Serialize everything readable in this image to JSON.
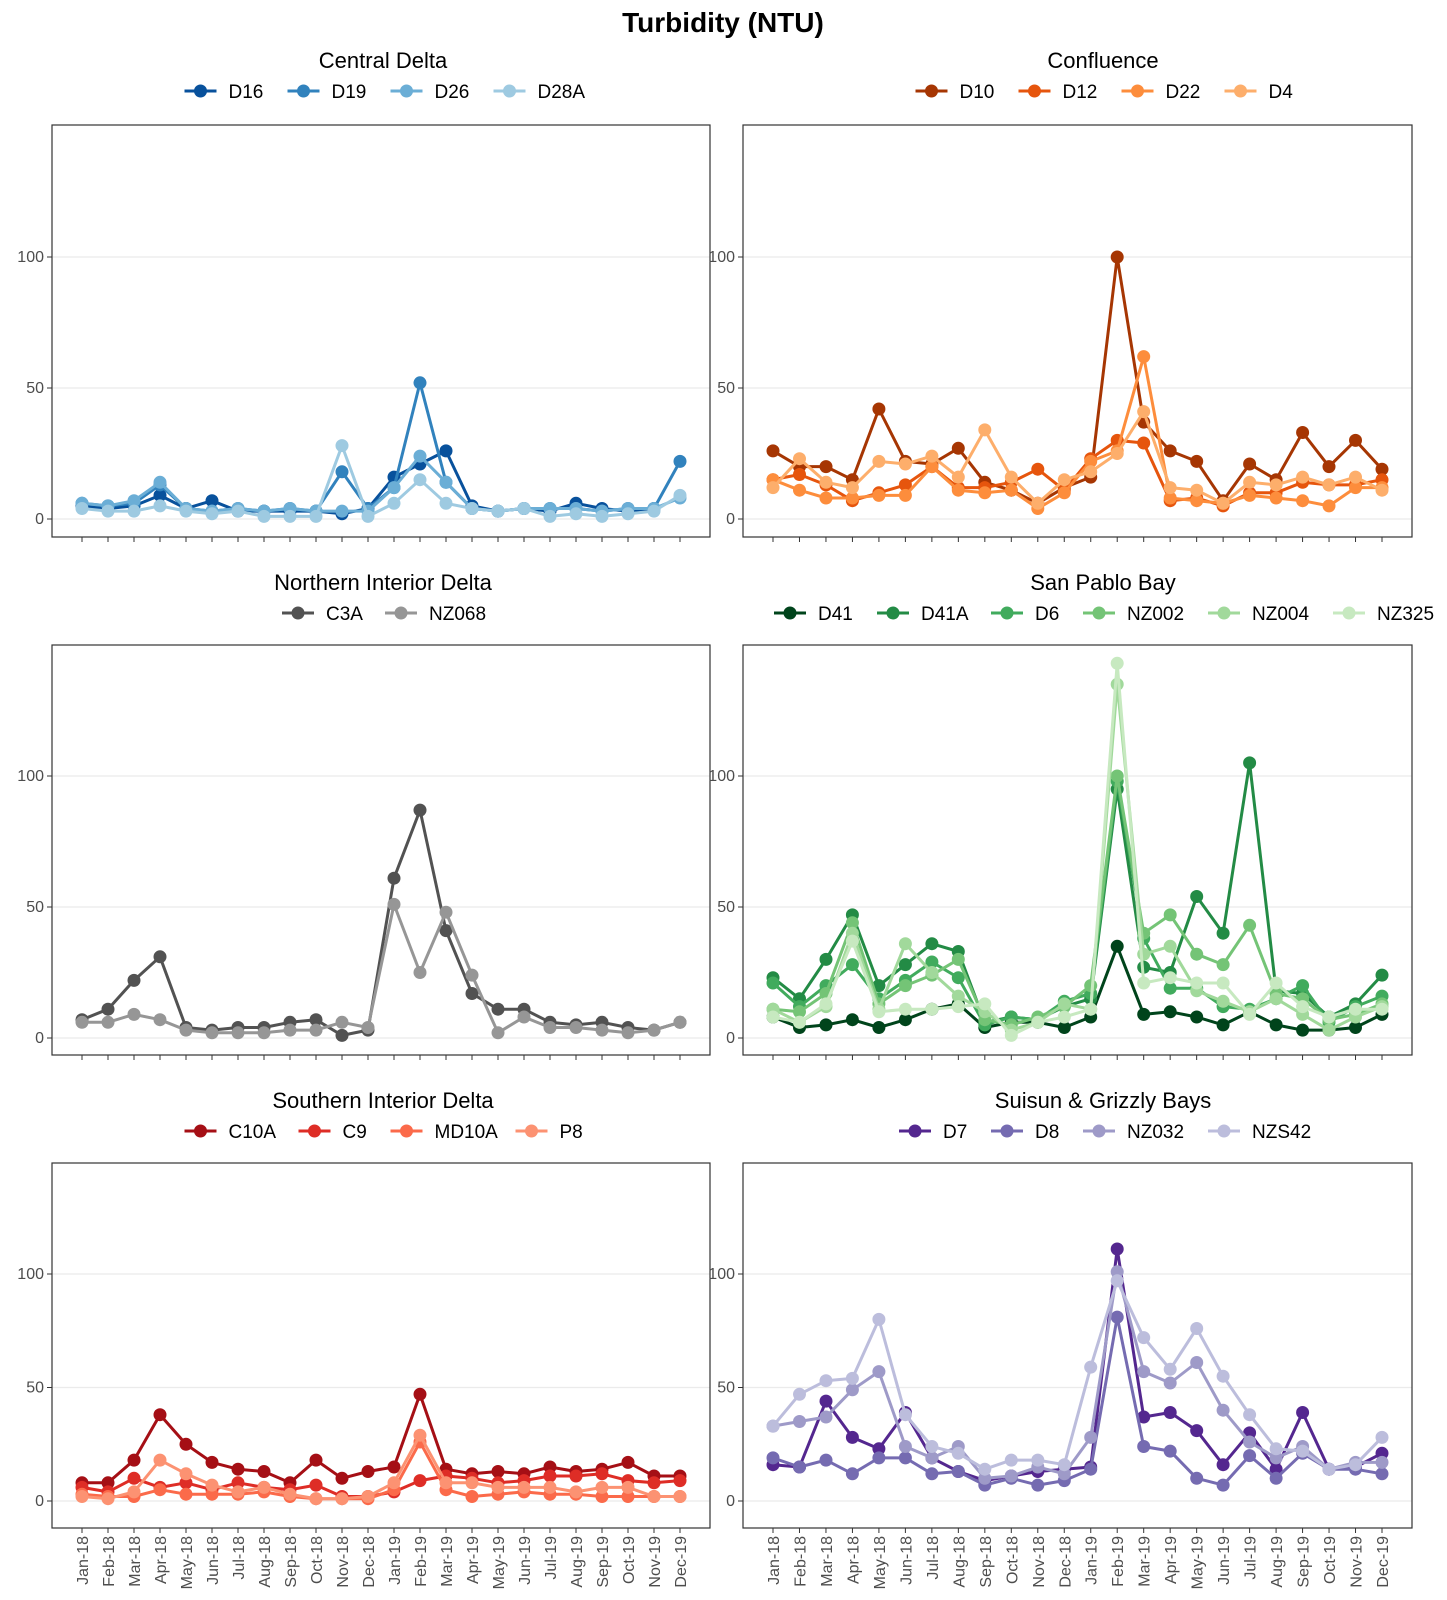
{
  "figure": {
    "title": "Turbidity (NTU)"
  },
  "chart_data": [
    {
      "type": "line",
      "title": "Central Delta",
      "x": [
        "Jan-18",
        "Feb-18",
        "Mar-18",
        "Apr-18",
        "May-18",
        "Jun-18",
        "Jul-18",
        "Aug-18",
        "Sep-18",
        "Oct-18",
        "Nov-18",
        "Dec-18",
        "Jan-19",
        "Feb-19",
        "Mar-19",
        "Apr-19",
        "May-19",
        "Jun-19",
        "Jul-19",
        "Aug-19",
        "Sep-19",
        "Oct-19",
        "Nov-19",
        "Dec-19"
      ],
      "ylim": [
        0,
        140
      ],
      "yticks": [
        0,
        50,
        100
      ],
      "show_x_labels": false,
      "series": [
        {
          "name": "D16",
          "color": "#08519c",
          "values": [
            5,
            4,
            5,
            9,
            4,
            7,
            3,
            3,
            3,
            3,
            2,
            4,
            16,
            21,
            26,
            5,
            3,
            4,
            3,
            6,
            4,
            3,
            4,
            null
          ]
        },
        {
          "name": "D19",
          "color": "#3182bd",
          "values": [
            6,
            5,
            6,
            13,
            4,
            3,
            4,
            3,
            4,
            3,
            18,
            4,
            12,
            52,
            14,
            4,
            3,
            4,
            4,
            4,
            3,
            4,
            4,
            22
          ]
        },
        {
          "name": "D26",
          "color": "#6baed6",
          "values": [
            6,
            5,
            7,
            14,
            4,
            3,
            4,
            3,
            4,
            3,
            3,
            3,
            12,
            24,
            14,
            4,
            3,
            4,
            4,
            4,
            3,
            4,
            4,
            8
          ]
        },
        {
          "name": "D28A",
          "color": "#9ecae1",
          "values": [
            4,
            3,
            3,
            5,
            3,
            2,
            3,
            1,
            1,
            1,
            28,
            1,
            6,
            15,
            6,
            4,
            3,
            4,
            1,
            2,
            1,
            2,
            3,
            9
          ]
        }
      ]
    },
    {
      "type": "line",
      "title": "Confluence",
      "x": [
        "Jan-18",
        "Feb-18",
        "Mar-18",
        "Apr-18",
        "May-18",
        "Jun-18",
        "Jul-18",
        "Aug-18",
        "Sep-18",
        "Oct-18",
        "Nov-18",
        "Dec-18",
        "Jan-19",
        "Feb-19",
        "Mar-19",
        "Apr-19",
        "May-19",
        "Jun-19",
        "Jul-19",
        "Aug-19",
        "Sep-19",
        "Oct-19",
        "Nov-19",
        "Dec-19"
      ],
      "ylim": [
        0,
        140
      ],
      "yticks": [
        0,
        50,
        100
      ],
      "show_x_labels": false,
      "series": [
        {
          "name": "D10",
          "color": "#a63603",
          "values": [
            26,
            20,
            20,
            15,
            42,
            22,
            21,
            27,
            14,
            11,
            6,
            12,
            16,
            100,
            37,
            26,
            22,
            7,
            21,
            15,
            33,
            20,
            30,
            19
          ]
        },
        {
          "name": "D12",
          "color": "#e6550d",
          "values": [
            15,
            17,
            13,
            7,
            10,
            13,
            20,
            12,
            12,
            14,
            19,
            11,
            23,
            30,
            29,
            7,
            8,
            5,
            10,
            10,
            14,
            13,
            13,
            15
          ]
        },
        {
          "name": "D22",
          "color": "#fd8d3c",
          "values": [
            15,
            11,
            8,
            8,
            9,
            9,
            20,
            11,
            10,
            11,
            4,
            10,
            22,
            26,
            62,
            8,
            7,
            6,
            9,
            8,
            7,
            5,
            12,
            12
          ]
        },
        {
          "name": "D4",
          "color": "#fdae6b",
          "values": [
            12,
            23,
            14,
            12,
            22,
            21,
            24,
            16,
            34,
            16,
            6,
            15,
            18,
            25,
            41,
            12,
            11,
            6,
            14,
            13,
            16,
            13,
            16,
            11
          ]
        }
      ]
    },
    {
      "type": "line",
      "title": "Northern Interior Delta",
      "x": [
        "Jan-18",
        "Feb-18",
        "Mar-18",
        "Apr-18",
        "May-18",
        "Jun-18",
        "Jul-18",
        "Aug-18",
        "Sep-18",
        "Oct-18",
        "Nov-18",
        "Dec-18",
        "Jan-19",
        "Feb-19",
        "Mar-19",
        "Apr-19",
        "May-19",
        "Jun-19",
        "Jul-19",
        "Aug-19",
        "Sep-19",
        "Oct-19",
        "Nov-19",
        "Dec-19"
      ],
      "ylim": [
        0,
        140
      ],
      "yticks": [
        0,
        50,
        100
      ],
      "show_x_labels": false,
      "series": [
        {
          "name": "C3A",
          "color": "#525252",
          "values": [
            7,
            11,
            22,
            31,
            4,
            3,
            4,
            4,
            6,
            7,
            1,
            3,
            61,
            87,
            41,
            17,
            11,
            11,
            6,
            5,
            6,
            4,
            3,
            6
          ]
        },
        {
          "name": "NZ068",
          "color": "#969696",
          "values": [
            6,
            6,
            9,
            7,
            3,
            2,
            2,
            2,
            3,
            3,
            6,
            4,
            51,
            25,
            48,
            24,
            2,
            8,
            4,
            4,
            3,
            2,
            3,
            6
          ]
        }
      ]
    },
    {
      "type": "line",
      "title": "San Pablo Bay",
      "x": [
        "Jan-18",
        "Feb-18",
        "Mar-18",
        "Apr-18",
        "May-18",
        "Jun-18",
        "Jul-18",
        "Aug-18",
        "Sep-18",
        "Oct-18",
        "Nov-18",
        "Dec-18",
        "Jan-19",
        "Feb-19",
        "Mar-19",
        "Apr-19",
        "May-19",
        "Jun-19",
        "Jul-19",
        "Aug-19",
        "Sep-19",
        "Oct-19",
        "Nov-19",
        "Dec-19"
      ],
      "ylim": [
        0,
        140
      ],
      "yticks": [
        0,
        50,
        100
      ],
      "show_x_labels": false,
      "series": [
        {
          "name": "D41",
          "color": "#00441b",
          "values": [
            8,
            4,
            5,
            7,
            4,
            7,
            11,
            13,
            4,
            6,
            6,
            4,
            8,
            35,
            9,
            10,
            8,
            5,
            10,
            5,
            3,
            3,
            4,
            9
          ]
        },
        {
          "name": "D41A",
          "color": "#238b45",
          "values": [
            23,
            15,
            30,
            47,
            20,
            28,
            36,
            33,
            6,
            8,
            7,
            12,
            15,
            95,
            27,
            25,
            54,
            40,
            105,
            18,
            17,
            8,
            13,
            24
          ]
        },
        {
          "name": "D6",
          "color": "#41ab5d",
          "values": [
            21,
            12,
            20,
            28,
            15,
            22,
            29,
            23,
            5,
            8,
            7,
            14,
            17,
            98,
            38,
            19,
            19,
            12,
            11,
            15,
            20,
            6,
            12,
            16
          ]
        },
        {
          "name": "NZ002",
          "color": "#74c476",
          "values": [
            11,
            10,
            17,
            44,
            13,
            20,
            24,
            30,
            7,
            5,
            8,
            12,
            20,
            100,
            40,
            47,
            32,
            28,
            43,
            17,
            15,
            7,
            9,
            13
          ]
        },
        {
          "name": "NZ004",
          "color": "#a1d99b",
          "values": [
            11,
            6,
            12,
            40,
            11,
            36,
            25,
            16,
            10,
            3,
            6,
            13,
            11,
            135,
            32,
            35,
            18,
            14,
            10,
            15,
            9,
            3,
            8,
            12
          ]
        },
        {
          "name": "NZ325",
          "color": "#c7e9c0",
          "values": [
            8,
            6,
            13,
            37,
            10,
            11,
            11,
            12,
            13,
            1,
            6,
            8,
            11,
            143,
            21,
            23,
            21,
            21,
            9,
            21,
            12,
            8,
            11,
            11
          ]
        }
      ]
    },
    {
      "type": "line",
      "title": "Southern Interior Delta",
      "x": [
        "Jan-18",
        "Feb-18",
        "Mar-18",
        "Apr-18",
        "May-18",
        "Jun-18",
        "Jul-18",
        "Aug-18",
        "Sep-18",
        "Oct-18",
        "Nov-18",
        "Dec-18",
        "Jan-19",
        "Feb-19",
        "Mar-19",
        "Apr-19",
        "May-19",
        "Jun-19",
        "Jul-19",
        "Aug-19",
        "Sep-19",
        "Oct-19",
        "Nov-19",
        "Dec-19"
      ],
      "ylim": [
        0,
        140
      ],
      "yticks": [
        0,
        50,
        100
      ],
      "show_x_labels": true,
      "series": [
        {
          "name": "C10A",
          "color": "#a50f15",
          "values": [
            8,
            8,
            18,
            38,
            25,
            17,
            14,
            13,
            8,
            18,
            10,
            13,
            15,
            47,
            14,
            12,
            13,
            12,
            15,
            13,
            14,
            17,
            11,
            11
          ]
        },
        {
          "name": "C9",
          "color": "#de2d26",
          "values": [
            6,
            4,
            10,
            6,
            8,
            5,
            8,
            6,
            5,
            7,
            2,
            2,
            4,
            9,
            11,
            10,
            8,
            9,
            11,
            11,
            12,
            9,
            8,
            9
          ]
        },
        {
          "name": "MD10A",
          "color": "#fb6a4a",
          "values": [
            3,
            2,
            2,
            5,
            3,
            3,
            3,
            4,
            2,
            1,
            1,
            1,
            5,
            26,
            5,
            2,
            3,
            4,
            3,
            3,
            2,
            2,
            2,
            2
          ]
        },
        {
          "name": "P8",
          "color": "#fc9272",
          "values": [
            2,
            1,
            4,
            18,
            12,
            7,
            4,
            6,
            3,
            1,
            1,
            2,
            8,
            29,
            8,
            8,
            6,
            6,
            6,
            4,
            6,
            6,
            2,
            2
          ]
        }
      ]
    },
    {
      "type": "line",
      "title": "Suisun & Grizzly Bays",
      "x": [
        "Jan-18",
        "Feb-18",
        "Mar-18",
        "Apr-18",
        "May-18",
        "Jun-18",
        "Jul-18",
        "Aug-18",
        "Sep-18",
        "Oct-18",
        "Nov-18",
        "Dec-18",
        "Jan-19",
        "Feb-19",
        "Mar-19",
        "Apr-19",
        "May-19",
        "Jun-19",
        "Jul-19",
        "Aug-19",
        "Sep-19",
        "Oct-19",
        "Nov-19",
        "Dec-19"
      ],
      "ylim": [
        0,
        140
      ],
      "yticks": [
        0,
        50,
        100
      ],
      "show_x_labels": true,
      "series": [
        {
          "name": "D7",
          "color": "#54278f",
          "values": [
            16,
            15,
            44,
            28,
            23,
            39,
            19,
            13,
            9,
            11,
            13,
            14,
            15,
            111,
            37,
            39,
            31,
            16,
            30,
            14,
            39,
            14,
            15,
            21
          ]
        },
        {
          "name": "D8",
          "color": "#756bb1",
          "values": [
            19,
            15,
            18,
            12,
            19,
            19,
            12,
            13,
            7,
            10,
            7,
            9,
            14,
            81,
            24,
            22,
            10,
            7,
            20,
            10,
            21,
            14,
            14,
            12
          ]
        },
        {
          "name": "NZ032",
          "color": "#9e9ac8",
          "values": [
            33,
            35,
            37,
            49,
            57,
            24,
            19,
            24,
            10,
            11,
            15,
            12,
            28,
            101,
            57,
            52,
            61,
            40,
            26,
            19,
            24,
            14,
            17,
            17
          ]
        },
        {
          "name": "NZS42",
          "color": "#bcbddc",
          "values": [
            33,
            47,
            53,
            54,
            80,
            38,
            24,
            21,
            14,
            18,
            18,
            16,
            59,
            97,
            72,
            58,
            76,
            55,
            38,
            23,
            22,
            14,
            16,
            28
          ]
        }
      ]
    }
  ]
}
